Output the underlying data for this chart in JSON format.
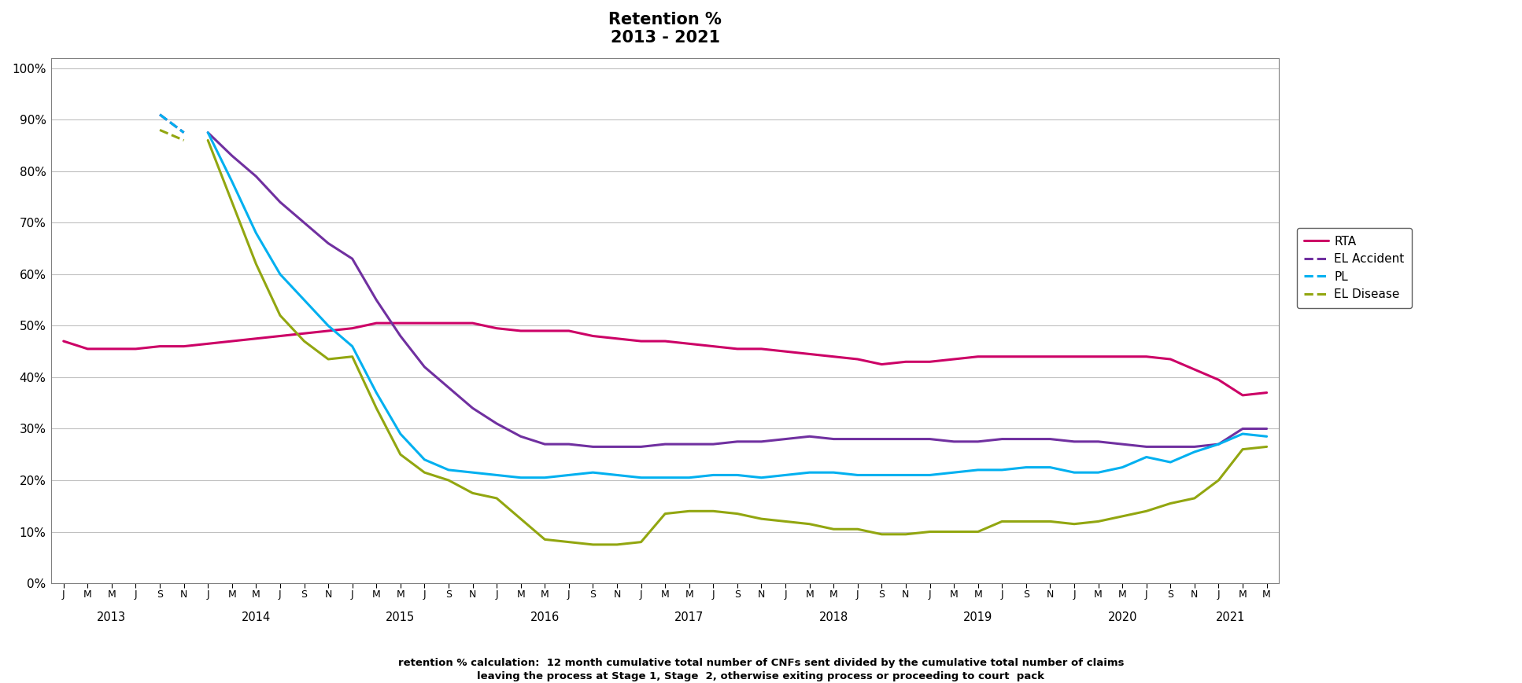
{
  "title": "Retention %\n2013 - 2021",
  "footnote1": "retention % calculation:  12 month cumulative total number of CNFs sent divided by the cumulative total number of claims",
  "footnote2": "leaving the process at Stage 1, Stage  2, otherwise exiting process or proceeding to court  pack",
  "x_tick_labels": [
    "J",
    "M",
    "M",
    "J",
    "S",
    "N",
    "J",
    "M",
    "M",
    "J",
    "S",
    "N",
    "J",
    "M",
    "M",
    "J",
    "S",
    "N",
    "J",
    "M",
    "M",
    "J",
    "S",
    "N",
    "J",
    "M",
    "M",
    "J",
    "S",
    "N",
    "J",
    "M",
    "M",
    "J",
    "S",
    "N",
    "J",
    "M",
    "M",
    "J",
    "S",
    "N",
    "J",
    "M",
    "M",
    "J",
    "S",
    "N",
    "J",
    "M",
    "M"
  ],
  "year_labels": [
    "2013",
    "2014",
    "2015",
    "2016",
    "2017",
    "2018",
    "2019",
    "2020",
    "2021"
  ],
  "year_positions": [
    2.0,
    8.0,
    14.0,
    20.0,
    26.0,
    32.0,
    38.0,
    44.0,
    48.5
  ],
  "yticks": [
    0.0,
    0.1,
    0.2,
    0.3,
    0.4,
    0.5,
    0.6,
    0.7,
    0.8,
    0.9,
    1.0
  ],
  "ytick_labels": [
    "0%",
    "10%",
    "20%",
    "30%",
    "40%",
    "50%",
    "60%",
    "70%",
    "80%",
    "90%",
    "100%"
  ],
  "colors": {
    "RTA": "#CC0066",
    "EL_Accident": "#7030A0",
    "PL": "#00B0F0",
    "EL_Disease": "#92A610"
  },
  "rta": [
    0.47,
    0.455,
    0.455,
    0.455,
    0.46,
    0.46,
    0.465,
    0.47,
    0.475,
    0.48,
    0.485,
    0.49,
    0.495,
    0.505,
    0.505,
    0.505,
    0.505,
    0.505,
    0.495,
    0.49,
    0.49,
    0.49,
    0.48,
    0.475,
    0.47,
    0.47,
    0.465,
    0.46,
    0.455,
    0.455,
    0.45,
    0.445,
    0.44,
    0.435,
    0.425,
    0.43,
    0.43,
    0.435,
    0.44,
    0.44,
    0.44,
    0.44,
    0.44,
    0.44,
    0.44,
    0.44,
    0.435,
    0.415,
    0.395,
    0.365,
    0.37
  ],
  "el_accident_dashed": [
    null,
    null,
    null,
    null,
    0.91,
    0.875,
    null,
    null,
    null,
    null,
    null,
    null,
    null,
    null,
    null,
    null,
    null,
    null,
    null,
    null,
    null,
    null,
    null,
    null,
    null,
    null,
    null,
    null,
    null,
    null,
    null,
    null,
    null,
    null,
    null,
    null,
    null,
    null,
    null,
    null,
    null,
    null,
    null,
    null,
    null,
    null,
    null,
    null,
    null,
    null,
    null
  ],
  "el_accident_solid": [
    null,
    null,
    null,
    null,
    null,
    null,
    0.875,
    0.83,
    0.79,
    0.74,
    0.7,
    0.66,
    0.63,
    0.55,
    0.48,
    0.42,
    0.38,
    0.34,
    0.31,
    0.285,
    0.27,
    0.27,
    0.265,
    0.265,
    0.265,
    0.27,
    0.27,
    0.27,
    0.275,
    0.275,
    0.28,
    0.285,
    0.28,
    0.28,
    0.28,
    0.28,
    0.28,
    0.275,
    0.275,
    0.28,
    0.28,
    0.28,
    0.275,
    0.275,
    0.27,
    0.265,
    0.265,
    0.265,
    0.27,
    0.3,
    0.3
  ],
  "pl_dashed": [
    null,
    null,
    null,
    null,
    0.91,
    0.875,
    null,
    null,
    null,
    null,
    null,
    null,
    null,
    null,
    null,
    null,
    null,
    null,
    null,
    null,
    null,
    null,
    null,
    null,
    null,
    null,
    null,
    null,
    null,
    null,
    null,
    null,
    null,
    null,
    null,
    null,
    null,
    null,
    null,
    null,
    null,
    null,
    null,
    null,
    null,
    null,
    null,
    null,
    null,
    null,
    null
  ],
  "pl_solid": [
    null,
    null,
    null,
    null,
    null,
    null,
    0.875,
    0.78,
    0.68,
    0.6,
    0.55,
    0.5,
    0.46,
    0.37,
    0.29,
    0.24,
    0.22,
    0.215,
    0.21,
    0.205,
    0.205,
    0.21,
    0.215,
    0.21,
    0.205,
    0.205,
    0.205,
    0.21,
    0.21,
    0.205,
    0.21,
    0.215,
    0.215,
    0.21,
    0.21,
    0.21,
    0.21,
    0.215,
    0.22,
    0.22,
    0.225,
    0.225,
    0.215,
    0.215,
    0.225,
    0.245,
    0.235,
    0.255,
    0.27,
    0.29,
    0.285
  ],
  "el_disease_dashed": [
    null,
    null,
    null,
    null,
    0.88,
    0.86,
    null,
    null,
    null,
    null,
    null,
    null,
    null,
    null,
    null,
    null,
    null,
    null,
    null,
    null,
    null,
    null,
    null,
    null,
    null,
    null,
    null,
    null,
    null,
    null,
    null,
    null,
    null,
    null,
    null,
    null,
    null,
    null,
    null,
    null,
    null,
    null,
    null,
    null,
    null,
    null,
    null,
    null,
    null,
    null,
    null
  ],
  "el_disease_solid": [
    null,
    null,
    null,
    null,
    null,
    null,
    0.86,
    0.74,
    0.62,
    0.52,
    0.47,
    0.435,
    0.44,
    0.34,
    0.25,
    0.215,
    0.2,
    0.175,
    0.165,
    0.125,
    0.085,
    0.08,
    0.075,
    0.075,
    0.08,
    0.135,
    0.14,
    0.14,
    0.135,
    0.125,
    0.12,
    0.115,
    0.105,
    0.105,
    0.095,
    0.095,
    0.1,
    0.1,
    0.1,
    0.12,
    0.12,
    0.12,
    0.115,
    0.12,
    0.13,
    0.14,
    0.155,
    0.165,
    0.2,
    0.26,
    0.265
  ]
}
